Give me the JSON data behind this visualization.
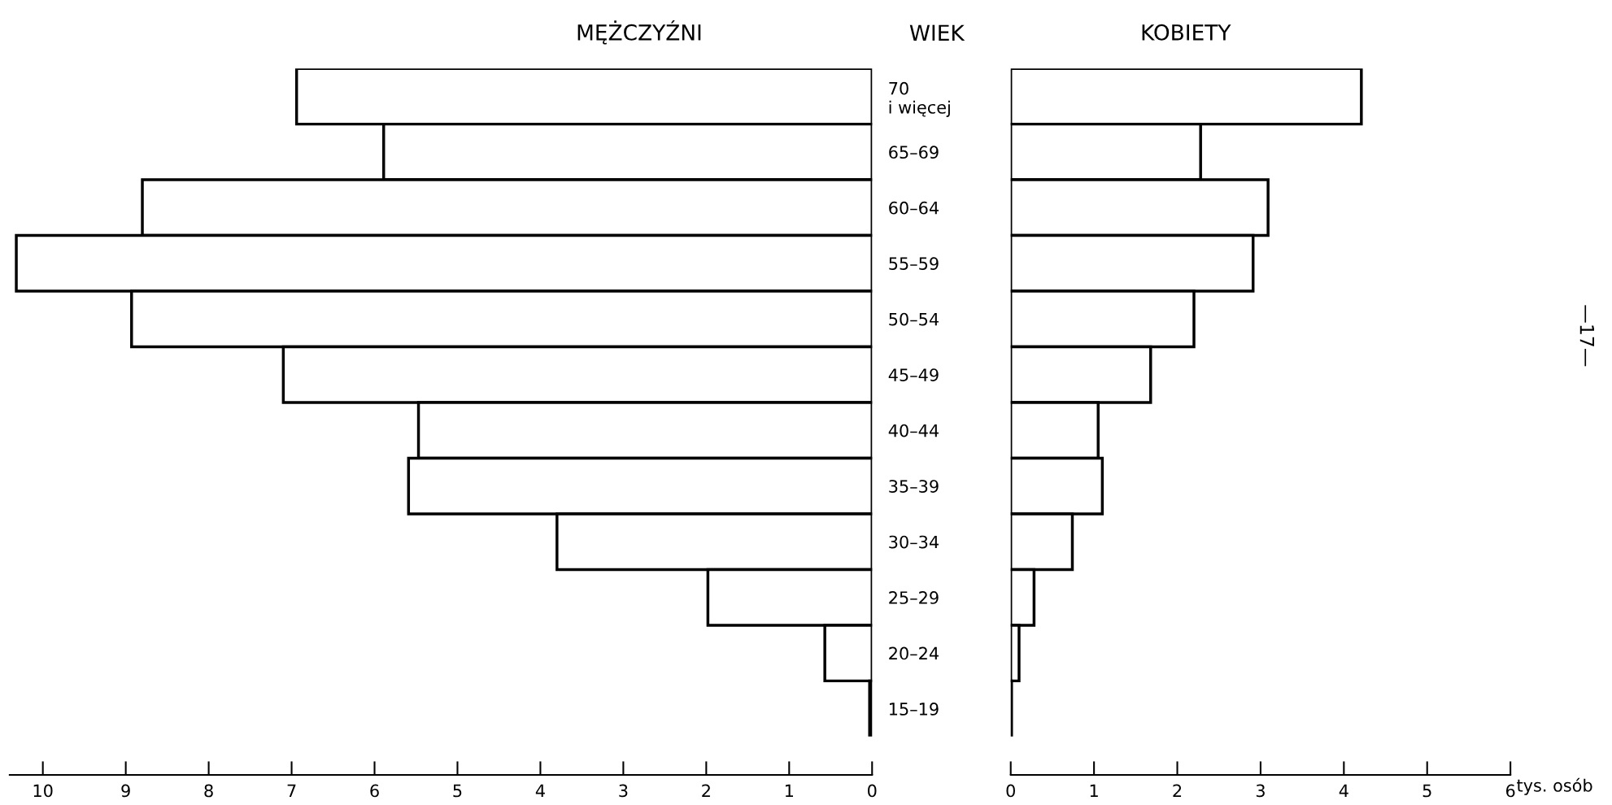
{
  "chart_data": [
    {
      "type": "bar",
      "orientation": "horizontal",
      "title": "MĘŻCZYŹNI",
      "categories": [
        "70\ni więcej",
        "65–69",
        "60–64",
        "55–59",
        "50–54",
        "45–49",
        "40–44",
        "35–39",
        "30–34",
        "25–29",
        "20–24",
        "15–19"
      ],
      "series": [
        {
          "color": "#ffffff",
          "values": [
            6.94,
            5.89,
            8.8,
            10.32,
            8.93,
            7.1,
            5.47,
            5.59,
            3.8,
            1.98,
            0.57,
            0.03
          ]
        }
      ],
      "xlim": [
        10.4,
        0
      ],
      "xticks": [
        10,
        9,
        8,
        7,
        6,
        5,
        4,
        3,
        2,
        1,
        0
      ],
      "grid": false,
      "legend": false,
      "annotations": [
        "WIEK"
      ]
    },
    {
      "type": "bar",
      "orientation": "horizontal",
      "title": "KOBIETY",
      "xlabel": "tys. osób",
      "categories": [
        null,
        null,
        null,
        null,
        null,
        null,
        null,
        null,
        null,
        null,
        null,
        null
      ],
      "series": [
        {
          "color": "#ffffff",
          "values": [
            4.21,
            2.28,
            3.09,
            2.91,
            2.2,
            1.68,
            1.05,
            1.1,
            0.74,
            0.28,
            0.1,
            0.01
          ]
        }
      ],
      "xlim": [
        0,
        6
      ],
      "xticks": [
        0,
        1,
        2,
        3,
        4,
        5,
        6
      ],
      "tick_labels": "x",
      "grid": false,
      "legend": false,
      "annotations": [
        "—17—"
      ]
    }
  ]
}
